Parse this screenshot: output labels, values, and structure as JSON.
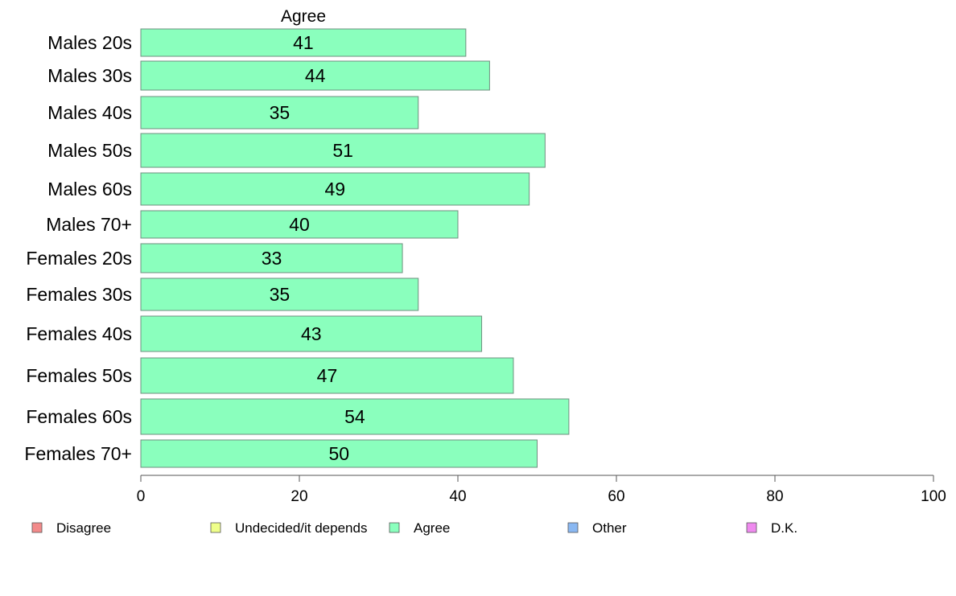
{
  "chart_data": {
    "type": "bar",
    "orientation": "horizontal",
    "title": "Agree",
    "categories": [
      "Males 20s",
      "Males 30s",
      "Males 40s",
      "Males 50s",
      "Males 60s",
      "Males 70+",
      "Females 20s",
      "Females 30s",
      "Females 40s",
      "Females 50s",
      "Females 60s",
      "Females 70+"
    ],
    "series": [
      {
        "name": "Agree",
        "color": "#8affbd",
        "values": [
          41,
          44,
          35,
          51,
          49,
          40,
          33,
          35,
          43,
          47,
          54,
          50
        ]
      }
    ],
    "xlim": [
      0,
      100
    ],
    "xticks": [
      0,
      20,
      40,
      60,
      80,
      100
    ],
    "xlabel": "",
    "ylabel": "",
    "grid": false,
    "legend": {
      "placement": "bottom",
      "items": [
        {
          "label": "Disagree",
          "color": "#f28a8a"
        },
        {
          "label": "Undecided/it depends",
          "color": "#efff8a"
        },
        {
          "label": "Agree",
          "color": "#8affbd"
        },
        {
          "label": "Other",
          "color": "#8ab8f2"
        },
        {
          "label": "D.K.",
          "color": "#ef8aef"
        }
      ]
    }
  }
}
